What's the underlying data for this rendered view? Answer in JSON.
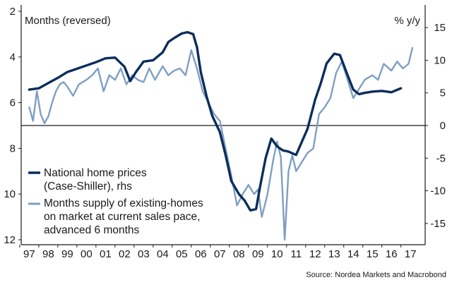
{
  "chart_data": {
    "type": "line",
    "title": "",
    "left_axis": {
      "label": "Months (reversed)",
      "reversed": true,
      "range": [
        2,
        12
      ],
      "ticks": [
        "2",
        "4",
        "6",
        "8",
        "10",
        "12"
      ]
    },
    "right_axis": {
      "label": "% y/y",
      "range": [
        -17.5,
        17.5
      ],
      "ticks": [
        "15",
        "10",
        "5",
        "0",
        "-5",
        "-10",
        "-15"
      ]
    },
    "x_axis": {
      "range": [
        1996.8,
        2017.4
      ],
      "ticks": [
        "97",
        "98",
        "99",
        "00",
        "01",
        "02",
        "03",
        "04",
        "05",
        "06",
        "07",
        "08",
        "09",
        "10",
        "11",
        "12",
        "13",
        "14",
        "15",
        "16",
        "17"
      ]
    },
    "grid": false,
    "legend": {
      "placement": "bottom-left",
      "entries": [
        {
          "lines": [
            "National home prices",
            "(Case-Shiller), rhs"
          ],
          "color": "#0b2d5b"
        },
        {
          "lines": [
            "Months supply of existing-homes",
            "on market at current sales pace,",
            "advanced 6 months"
          ],
          "color": "#7f9fc2"
        }
      ]
    },
    "source": "Source: Nordea Markets and Macrobond",
    "series": [
      {
        "name": "National home prices (Case-Shiller), rhs",
        "axis": "right",
        "color": "#0b2d5b",
        "x": [
          1997.0,
          1997.5,
          1998.0,
          1998.5,
          1999.0,
          1999.5,
          2000.0,
          2000.5,
          2001.0,
          2001.5,
          2002.0,
          2002.3,
          2002.6,
          2003.0,
          2003.5,
          2004.0,
          2004.3,
          2004.6,
          2005.0,
          2005.3,
          2005.6,
          2005.8,
          2006.0,
          2006.3,
          2006.6,
          2007.0,
          2007.3,
          2007.6,
          2008.0,
          2008.3,
          2008.6,
          2008.9,
          2009.1,
          2009.4,
          2009.7,
          2010.0,
          2010.3,
          2010.6,
          2011.0,
          2011.3,
          2011.6,
          2012.0,
          2012.3,
          2012.6,
          2013.0,
          2013.3,
          2013.6,
          2014.0,
          2014.3,
          2014.6,
          2015.0,
          2015.5,
          2016.0,
          2016.5
        ],
        "y": [
          5.5,
          5.7,
          6.5,
          7.3,
          8.2,
          8.7,
          9.2,
          9.7,
          10.3,
          10.4,
          9.0,
          6.8,
          8.2,
          9.8,
          10.0,
          11.2,
          12.8,
          13.4,
          14.1,
          14.3,
          14.0,
          12.0,
          8.2,
          4.5,
          1.5,
          -1.0,
          -4.5,
          -8.5,
          -10.5,
          -11.5,
          -13.0,
          -12.8,
          -9.5,
          -5.0,
          -2.0,
          -3.2,
          -3.8,
          -4.0,
          -4.5,
          -2.5,
          -0.5,
          4.0,
          6.5,
          9.5,
          11.0,
          10.8,
          8.5,
          5.5,
          4.8,
          5.0,
          5.2,
          5.3,
          5.1,
          5.7
        ]
      },
      {
        "name": "Months supply of existing-homes on market at current sales pace, advanced 6 months",
        "axis": "left",
        "color": "#7f9fc2",
        "x": [
          1997.0,
          1997.2,
          1997.4,
          1997.6,
          1997.8,
          1998.0,
          1998.2,
          1998.4,
          1998.6,
          1998.8,
          1999.0,
          1999.3,
          1999.6,
          2000.0,
          2000.3,
          2000.6,
          2000.9,
          2001.2,
          2001.5,
          2001.8,
          2002.1,
          2002.4,
          2002.7,
          2003.0,
          2003.3,
          2003.6,
          2004.0,
          2004.3,
          2004.6,
          2004.9,
          2005.2,
          2005.5,
          2005.8,
          2006.1,
          2006.4,
          2006.7,
          2007.0,
          2007.3,
          2007.6,
          2007.9,
          2008.2,
          2008.5,
          2008.8,
          2009.0,
          2009.2,
          2009.5,
          2009.8,
          2010.0,
          2010.2,
          2010.4,
          2010.6,
          2010.8,
          2011.0,
          2011.3,
          2011.6,
          2011.9,
          2012.2,
          2012.5,
          2012.8,
          2013.1,
          2013.4,
          2013.7,
          2014.0,
          2014.3,
          2014.6,
          2015.0,
          2015.3,
          2015.6,
          2016.0,
          2016.3,
          2016.6,
          2016.9,
          2017.1
        ],
        "y": [
          6.2,
          6.8,
          5.5,
          6.5,
          6.9,
          6.6,
          6.0,
          5.5,
          5.2,
          5.1,
          5.3,
          5.7,
          5.2,
          5.0,
          4.8,
          4.5,
          5.5,
          4.8,
          5.0,
          4.5,
          5.2,
          4.8,
          5.0,
          5.1,
          4.5,
          5.0,
          4.4,
          4.8,
          4.6,
          4.5,
          4.8,
          3.7,
          4.5,
          5.5,
          6.0,
          6.5,
          6.8,
          8.0,
          9.2,
          10.5,
          10.0,
          9.6,
          10.0,
          9.8,
          11.0,
          10.0,
          8.5,
          7.7,
          8.4,
          12.0,
          9.0,
          8.3,
          9.0,
          8.6,
          8.2,
          8.0,
          6.5,
          6.2,
          5.8,
          4.7,
          4.2,
          5.0,
          5.8,
          5.4,
          5.0,
          4.8,
          5.0,
          4.3,
          4.6,
          4.2,
          4.5,
          4.3,
          3.6
        ]
      }
    ]
  }
}
